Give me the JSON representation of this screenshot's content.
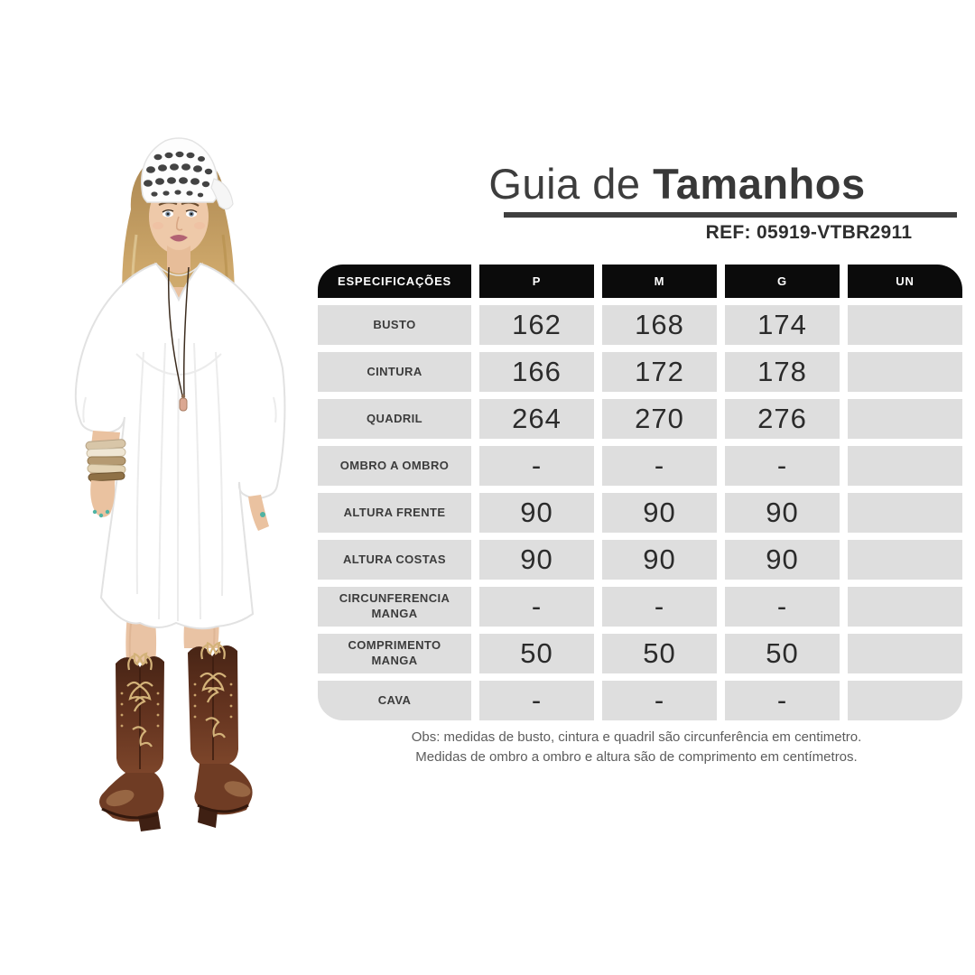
{
  "title": {
    "prefix": "Guia de ",
    "bold": "Tamanhos",
    "ref_label": "REF:",
    "ref_value": "05919-VTBR2911"
  },
  "size_table": {
    "columns": [
      "ESPECIFICAÇÕES",
      "P",
      "M",
      "G",
      "UN"
    ],
    "rows": [
      {
        "label": "BUSTO",
        "values": [
          "162",
          "168",
          "174",
          ""
        ]
      },
      {
        "label": "CINTURA",
        "values": [
          "166",
          "172",
          "178",
          ""
        ]
      },
      {
        "label": "QUADRIL",
        "values": [
          "264",
          "270",
          "276",
          ""
        ]
      },
      {
        "label": "OMBRO A OMBRO",
        "values": [
          "-",
          "-",
          "-",
          ""
        ]
      },
      {
        "label": "ALTURA FRENTE",
        "values": [
          "90",
          "90",
          "90",
          ""
        ]
      },
      {
        "label": "ALTURA COSTAS",
        "values": [
          "90",
          "90",
          "90",
          ""
        ]
      },
      {
        "label": "CIRCUNFERENCIA MANGA",
        "values": [
          "-",
          "-",
          "-",
          ""
        ]
      },
      {
        "label": "COMPRIMENTO MANGA",
        "values": [
          "50",
          "50",
          "50",
          ""
        ]
      },
      {
        "label": "CAVA",
        "values": [
          "-",
          "-",
          "-",
          ""
        ]
      }
    ]
  },
  "notes": {
    "line1": "Obs: medidas de busto, cintura e quadril são circunferência em centimetro.",
    "line2": "Medidas de ombro a ombro e altura são de comprimento em centímetros."
  },
  "photo": {
    "alt": "Modelo com bandana de crochê branca, vestido branco amplo e botas country marrons"
  },
  "colors": {
    "header_bg": "#0b0b0b",
    "cell_bg": "#dedede",
    "title_text": "#3d3d3d",
    "rule": "#3f3f3f",
    "boot_brown": "#5d2f1e",
    "boot_embroidery": "#d3b279",
    "skin": "#eec9a9",
    "hair_blonde": "#c9a265"
  }
}
